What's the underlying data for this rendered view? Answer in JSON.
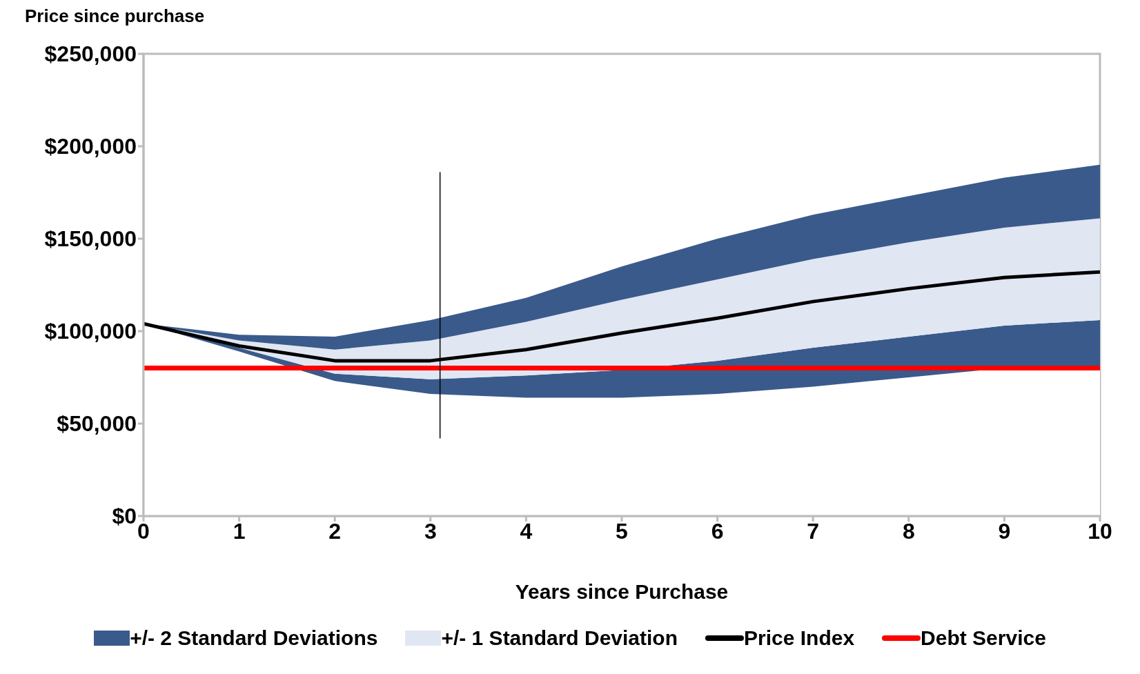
{
  "chart_data": {
    "type": "line",
    "title": "Price since purchase",
    "xlabel": "Years since Purchase",
    "x": [
      0,
      1,
      2,
      3,
      4,
      5,
      6,
      7,
      8,
      9,
      10
    ],
    "stacked": true,
    "series": [
      {
        "type": "area",
        "color": "#ffffff",
        "values": [
          104000,
          89000,
          73000,
          66000,
          64000,
          64000,
          66000,
          70000,
          75000,
          80000,
          80000
        ]
      },
      {
        "name": "+/- 2 Standard Deviations",
        "type": "area",
        "color": "#3a5a8c",
        "values": [
          0,
          2000,
          4000,
          8000,
          12000,
          15000,
          18000,
          21000,
          22000,
          23000,
          26000
        ]
      },
      {
        "name": "+/- 1 Standard Deviation",
        "type": "area",
        "color": "#e0e6f2",
        "values": [
          0,
          4000,
          13000,
          21000,
          29000,
          38000,
          44000,
          48000,
          51000,
          53000,
          55000
        ]
      },
      {
        "type": "area",
        "color": "#3a5a8c",
        "values": [
          0,
          3000,
          7000,
          11000,
          13000,
          18000,
          22000,
          24000,
          25000,
          27000,
          29000
        ]
      },
      {
        "name": "Price Index",
        "color": "#000000",
        "values": [
          104000,
          92000,
          84000,
          84000,
          90000,
          99000,
          107000,
          116000,
          123000,
          129000,
          132000
        ]
      },
      {
        "name": "Debt Service",
        "color": "#ff0000",
        "values": [
          80000,
          80000,
          80000,
          80000,
          80000,
          80000,
          80000,
          80000,
          80000,
          80000,
          80000
        ]
      },
      {
        "color": "#000000",
        "x": [
          3.1,
          3.1
        ],
        "values": [
          42000,
          186000
        ]
      }
    ],
    "xlim": [
      0,
      10
    ],
    "xticks": [
      0,
      1,
      2,
      3,
      4,
      5,
      6,
      7,
      8,
      9,
      10
    ],
    "ylim": [
      0,
      250000
    ],
    "yticks": [
      {
        "value": 0,
        "label": "$0"
      },
      {
        "value": 50000,
        "label": "$50,000"
      },
      {
        "value": 100000,
        "label": "$100,000"
      },
      {
        "value": 150000,
        "label": "$150,000"
      },
      {
        "value": 200000,
        "label": "$200,000"
      },
      {
        "value": 250000,
        "label": "$250,000"
      }
    ],
    "grid": false,
    "legend": "bottom",
    "marker": "none",
    "line_style": "solid"
  }
}
